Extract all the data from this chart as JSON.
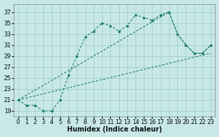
{
  "xlabel": "Humidex (Indice chaleur)",
  "bg_color": "#c8e8e8",
  "grid_color": "#a0cccc",
  "line_color": "#1a7a6a",
  "xlim": [
    -0.5,
    23.5
  ],
  "ylim": [
    18.0,
    38.5
  ],
  "yticks": [
    19,
    21,
    23,
    25,
    27,
    29,
    31,
    33,
    35,
    37
  ],
  "xticks": [
    0,
    1,
    2,
    3,
    4,
    5,
    6,
    7,
    8,
    9,
    10,
    11,
    12,
    13,
    14,
    15,
    16,
    17,
    18,
    19,
    20,
    21,
    22,
    23
  ],
  "main_x": [
    0,
    1,
    2,
    3,
    4,
    5,
    6,
    7,
    8,
    9,
    10,
    11,
    12,
    13,
    14,
    15,
    16,
    17,
    18,
    19,
    20,
    21,
    22,
    23
  ],
  "main_y": [
    21,
    20,
    20,
    19,
    19,
    21,
    25.5,
    29,
    32.5,
    33.5,
    35,
    34.5,
    33.5,
    34.5,
    36.5,
    36,
    35.5,
    36.5,
    37,
    33,
    31,
    29.5,
    29.5,
    31
  ],
  "line1_x": [
    0,
    18,
    19,
    20,
    21,
    22,
    23
  ],
  "line1_y": [
    21,
    37,
    33,
    31,
    29.5,
    29.5,
    31
  ],
  "line2_x": [
    0,
    18,
    19,
    20,
    21,
    22,
    23
  ],
  "line2_y": [
    21,
    37,
    33,
    31,
    29.5,
    29.5,
    31
  ],
  "font_size": 6,
  "xlabel_fontsize": 7
}
